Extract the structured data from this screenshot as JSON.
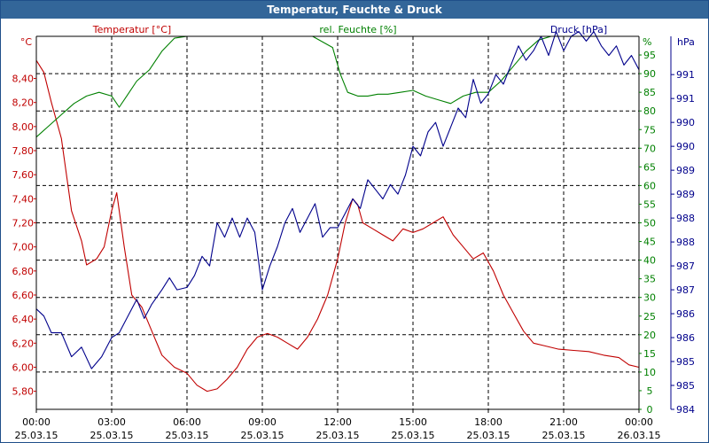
{
  "title": "Temperatur, Feuchte & Druck",
  "colors": {
    "temperature": "#c00000",
    "humidity": "#008000",
    "pressure": "#00008b",
    "titlebar": "#336699"
  },
  "chart_data": {
    "type": "line",
    "title": "Temperatur, Feuchte & Druck",
    "x": {
      "range_hours": [
        0,
        24
      ],
      "tick_times": [
        "00:00",
        "03:00",
        "06:00",
        "09:00",
        "12:00",
        "15:00",
        "18:00",
        "21:00",
        "00:00"
      ],
      "tick_dates": [
        "25.03.15",
        "25.03.15",
        "25.03.15",
        "25.03.15",
        "25.03.15",
        "25.03.15",
        "25.03.15",
        "25.03.15",
        "26.03.15"
      ]
    },
    "axes": {
      "temperature": {
        "label": "Temperatur [°C]",
        "unit": "°C",
        "range": [
          5.65,
          8.75
        ],
        "ticks": [
          "5,80",
          "6,00",
          "6,20",
          "6,40",
          "6,60",
          "6,80",
          "7,00",
          "7,20",
          "7,40",
          "7,60",
          "7,80",
          "8,00",
          "8,20",
          "8,40"
        ]
      },
      "humidity": {
        "label": "rel. Feuchte [%]",
        "unit": "%",
        "range": [
          0,
          100
        ],
        "ticks": [
          "0",
          "5",
          "10",
          "15",
          "20",
          "25",
          "30",
          "35",
          "40",
          "45",
          "50",
          "55",
          "60",
          "65",
          "70",
          "75",
          "80",
          "85",
          "90",
          "95"
        ]
      },
      "pressure": {
        "label": "Druck [hPa]",
        "unit": "hPa",
        "range": [
          984,
          991.8
        ],
        "ticks": [
          "984",
          "985",
          "985",
          "986",
          "986",
          "987",
          "987",
          "988",
          "988",
          "989",
          "989",
          "990",
          "990",
          "991",
          "991"
        ]
      }
    },
    "series": [
      {
        "name": "Temperatur",
        "axis": "temperature",
        "color": "#c00000",
        "points": [
          [
            0,
            8.55
          ],
          [
            0.3,
            8.45
          ],
          [
            0.6,
            8.2
          ],
          [
            1.0,
            7.9
          ],
          [
            1.4,
            7.3
          ],
          [
            1.8,
            7.05
          ],
          [
            2.0,
            6.85
          ],
          [
            2.4,
            6.9
          ],
          [
            2.7,
            7.0
          ],
          [
            3.0,
            7.3
          ],
          [
            3.2,
            7.45
          ],
          [
            3.5,
            7.0
          ],
          [
            3.8,
            6.6
          ],
          [
            4.2,
            6.5
          ],
          [
            4.6,
            6.3
          ],
          [
            5.0,
            6.1
          ],
          [
            5.5,
            6.0
          ],
          [
            6.0,
            5.95
          ],
          [
            6.4,
            5.85
          ],
          [
            6.8,
            5.8
          ],
          [
            7.2,
            5.82
          ],
          [
            7.6,
            5.9
          ],
          [
            8.0,
            6.0
          ],
          [
            8.4,
            6.15
          ],
          [
            8.8,
            6.25
          ],
          [
            9.2,
            6.28
          ],
          [
            9.6,
            6.25
          ],
          [
            10.0,
            6.2
          ],
          [
            10.4,
            6.15
          ],
          [
            10.8,
            6.25
          ],
          [
            11.2,
            6.4
          ],
          [
            11.6,
            6.6
          ],
          [
            12.0,
            6.9
          ],
          [
            12.3,
            7.2
          ],
          [
            12.6,
            7.4
          ],
          [
            12.8,
            7.35
          ],
          [
            13.0,
            7.2
          ],
          [
            13.4,
            7.15
          ],
          [
            13.8,
            7.1
          ],
          [
            14.2,
            7.05
          ],
          [
            14.6,
            7.15
          ],
          [
            15.0,
            7.12
          ],
          [
            15.4,
            7.15
          ],
          [
            15.8,
            7.2
          ],
          [
            16.2,
            7.25
          ],
          [
            16.6,
            7.1
          ],
          [
            17.0,
            7.0
          ],
          [
            17.4,
            6.9
          ],
          [
            17.8,
            6.95
          ],
          [
            18.2,
            6.8
          ],
          [
            18.6,
            6.6
          ],
          [
            19.0,
            6.45
          ],
          [
            19.4,
            6.3
          ],
          [
            19.8,
            6.2
          ],
          [
            20.2,
            6.18
          ],
          [
            20.8,
            6.15
          ],
          [
            21.4,
            6.14
          ],
          [
            22.0,
            6.13
          ],
          [
            22.6,
            6.1
          ],
          [
            23.2,
            6.08
          ],
          [
            23.6,
            6.02
          ],
          [
            24.0,
            6.0
          ]
        ]
      },
      {
        "name": "rel. Feuchte",
        "axis": "humidity",
        "color": "#008000",
        "points": [
          [
            0,
            73
          ],
          [
            0.5,
            76
          ],
          [
            1.0,
            79
          ],
          [
            1.5,
            82
          ],
          [
            2.0,
            84
          ],
          [
            2.5,
            85
          ],
          [
            3.0,
            84
          ],
          [
            3.3,
            81
          ],
          [
            3.6,
            84
          ],
          [
            4.0,
            88
          ],
          [
            4.5,
            91
          ],
          [
            5.0,
            96
          ],
          [
            5.5,
            99.5
          ],
          [
            6.0,
            100
          ],
          [
            7.0,
            100
          ],
          [
            8.0,
            100
          ],
          [
            9.0,
            100
          ],
          [
            10.0,
            100
          ],
          [
            11.0,
            100
          ],
          [
            11.8,
            97
          ],
          [
            12.1,
            90
          ],
          [
            12.4,
            85
          ],
          [
            12.8,
            84
          ],
          [
            13.2,
            84
          ],
          [
            13.6,
            84.5
          ],
          [
            14.0,
            84.5
          ],
          [
            14.5,
            85
          ],
          [
            15.0,
            85.5
          ],
          [
            15.5,
            84
          ],
          [
            16.0,
            83
          ],
          [
            16.5,
            82
          ],
          [
            17.0,
            84
          ],
          [
            17.5,
            85
          ],
          [
            18.0,
            85
          ],
          [
            18.5,
            88
          ],
          [
            19.0,
            92
          ],
          [
            19.5,
            96
          ],
          [
            20.0,
            99
          ],
          [
            20.5,
            100
          ],
          [
            21.0,
            100
          ],
          [
            22.0,
            100
          ],
          [
            23.0,
            100
          ],
          [
            24.0,
            100
          ]
        ]
      },
      {
        "name": "Druck",
        "axis": "pressure",
        "color": "#00008b",
        "points": [
          [
            0,
            986.1
          ],
          [
            0.3,
            985.95
          ],
          [
            0.6,
            985.6
          ],
          [
            1.0,
            985.6
          ],
          [
            1.4,
            985.1
          ],
          [
            1.8,
            985.3
          ],
          [
            2.2,
            984.85
          ],
          [
            2.6,
            985.1
          ],
          [
            3.0,
            985.5
          ],
          [
            3.3,
            985.6
          ],
          [
            3.6,
            985.9
          ],
          [
            4.0,
            986.3
          ],
          [
            4.3,
            985.9
          ],
          [
            4.6,
            986.2
          ],
          [
            5.0,
            986.5
          ],
          [
            5.3,
            986.75
          ],
          [
            5.6,
            986.5
          ],
          [
            6.0,
            986.55
          ],
          [
            6.3,
            986.8
          ],
          [
            6.6,
            987.2
          ],
          [
            6.9,
            987.0
          ],
          [
            7.2,
            987.9
          ],
          [
            7.5,
            987.6
          ],
          [
            7.8,
            988.0
          ],
          [
            8.1,
            987.6
          ],
          [
            8.4,
            988.0
          ],
          [
            8.7,
            987.7
          ],
          [
            9.0,
            986.5
          ],
          [
            9.3,
            987.0
          ],
          [
            9.6,
            987.4
          ],
          [
            9.9,
            987.9
          ],
          [
            10.2,
            988.2
          ],
          [
            10.5,
            987.7
          ],
          [
            10.8,
            988.0
          ],
          [
            11.1,
            988.3
          ],
          [
            11.4,
            987.6
          ],
          [
            11.7,
            987.8
          ],
          [
            12.0,
            987.8
          ],
          [
            12.3,
            988.1
          ],
          [
            12.6,
            988.4
          ],
          [
            12.9,
            988.2
          ],
          [
            13.2,
            988.8
          ],
          [
            13.5,
            988.6
          ],
          [
            13.8,
            988.4
          ],
          [
            14.1,
            988.7
          ],
          [
            14.4,
            988.5
          ],
          [
            14.7,
            988.9
          ],
          [
            15.0,
            989.5
          ],
          [
            15.3,
            989.3
          ],
          [
            15.6,
            989.8
          ],
          [
            15.9,
            990.0
          ],
          [
            16.2,
            989.5
          ],
          [
            16.5,
            989.9
          ],
          [
            16.8,
            990.3
          ],
          [
            17.1,
            990.1
          ],
          [
            17.4,
            990.9
          ],
          [
            17.7,
            990.4
          ],
          [
            18.0,
            990.6
          ],
          [
            18.3,
            991.0
          ],
          [
            18.6,
            990.8
          ],
          [
            18.9,
            991.2
          ],
          [
            19.2,
            991.6
          ],
          [
            19.5,
            991.3
          ],
          [
            19.8,
            991.5
          ],
          [
            20.1,
            991.8
          ],
          [
            20.4,
            991.4
          ],
          [
            20.7,
            991.9
          ],
          [
            21.0,
            991.5
          ],
          [
            21.3,
            991.8
          ],
          [
            21.6,
            991.9
          ],
          [
            21.9,
            991.7
          ],
          [
            22.2,
            991.9
          ],
          [
            22.5,
            991.6
          ],
          [
            22.8,
            991.4
          ],
          [
            23.1,
            991.6
          ],
          [
            23.4,
            991.2
          ],
          [
            23.7,
            991.4
          ],
          [
            24.0,
            991.1
          ]
        ]
      }
    ]
  }
}
